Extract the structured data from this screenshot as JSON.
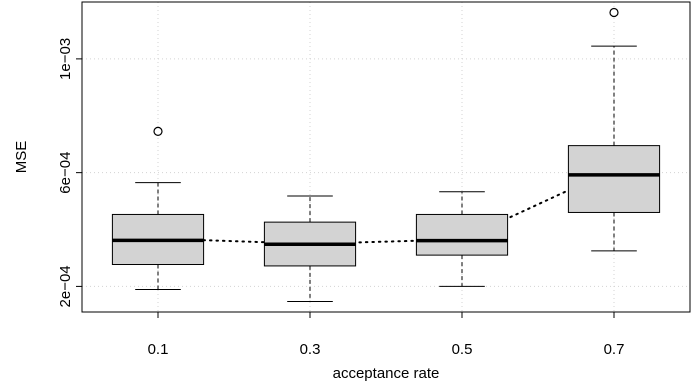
{
  "chart_data": {
    "type": "box",
    "title": "",
    "xlabel": "acceptance rate",
    "ylabel": "MSE",
    "categories": [
      "0.1",
      "0.3",
      "0.5",
      "0.7"
    ],
    "y_ticks": [
      {
        "value": 0.0002,
        "label": "2e−04"
      },
      {
        "value": 0.0006,
        "label": "6e−04"
      },
      {
        "value": 0.001,
        "label": "1e−03"
      }
    ],
    "ylim": [
      0.00011,
      0.0012
    ],
    "grid": true,
    "boxes": [
      {
        "category": "0.1",
        "whisker_low": 0.000189,
        "q1": 0.000277,
        "median": 0.000362,
        "q3": 0.000453,
        "whisker_high": 0.000565,
        "outliers": [
          0.000745
        ]
      },
      {
        "category": "0.3",
        "whisker_low": 0.000147,
        "q1": 0.000272,
        "median": 0.000348,
        "q3": 0.000426,
        "whisker_high": 0.000518,
        "outliers": []
      },
      {
        "category": "0.5",
        "whisker_low": 0.0002,
        "q1": 0.00031,
        "median": 0.000361,
        "q3": 0.000453,
        "whisker_high": 0.000533,
        "outliers": []
      },
      {
        "category": "0.7",
        "whisker_low": 0.000325,
        "q1": 0.00046,
        "median": 0.000592,
        "q3": 0.000695,
        "whisker_high": 0.001045,
        "outliers": [
          0.001163
        ]
      }
    ],
    "mean_line": {
      "style": "dotted",
      "values": [
        0.000368,
        0.00035,
        0.000365,
        0.000612
      ]
    },
    "colors": {
      "box_fill": "#d3d3d3",
      "stroke": "#000000",
      "grid": "#d3d3d3"
    }
  }
}
